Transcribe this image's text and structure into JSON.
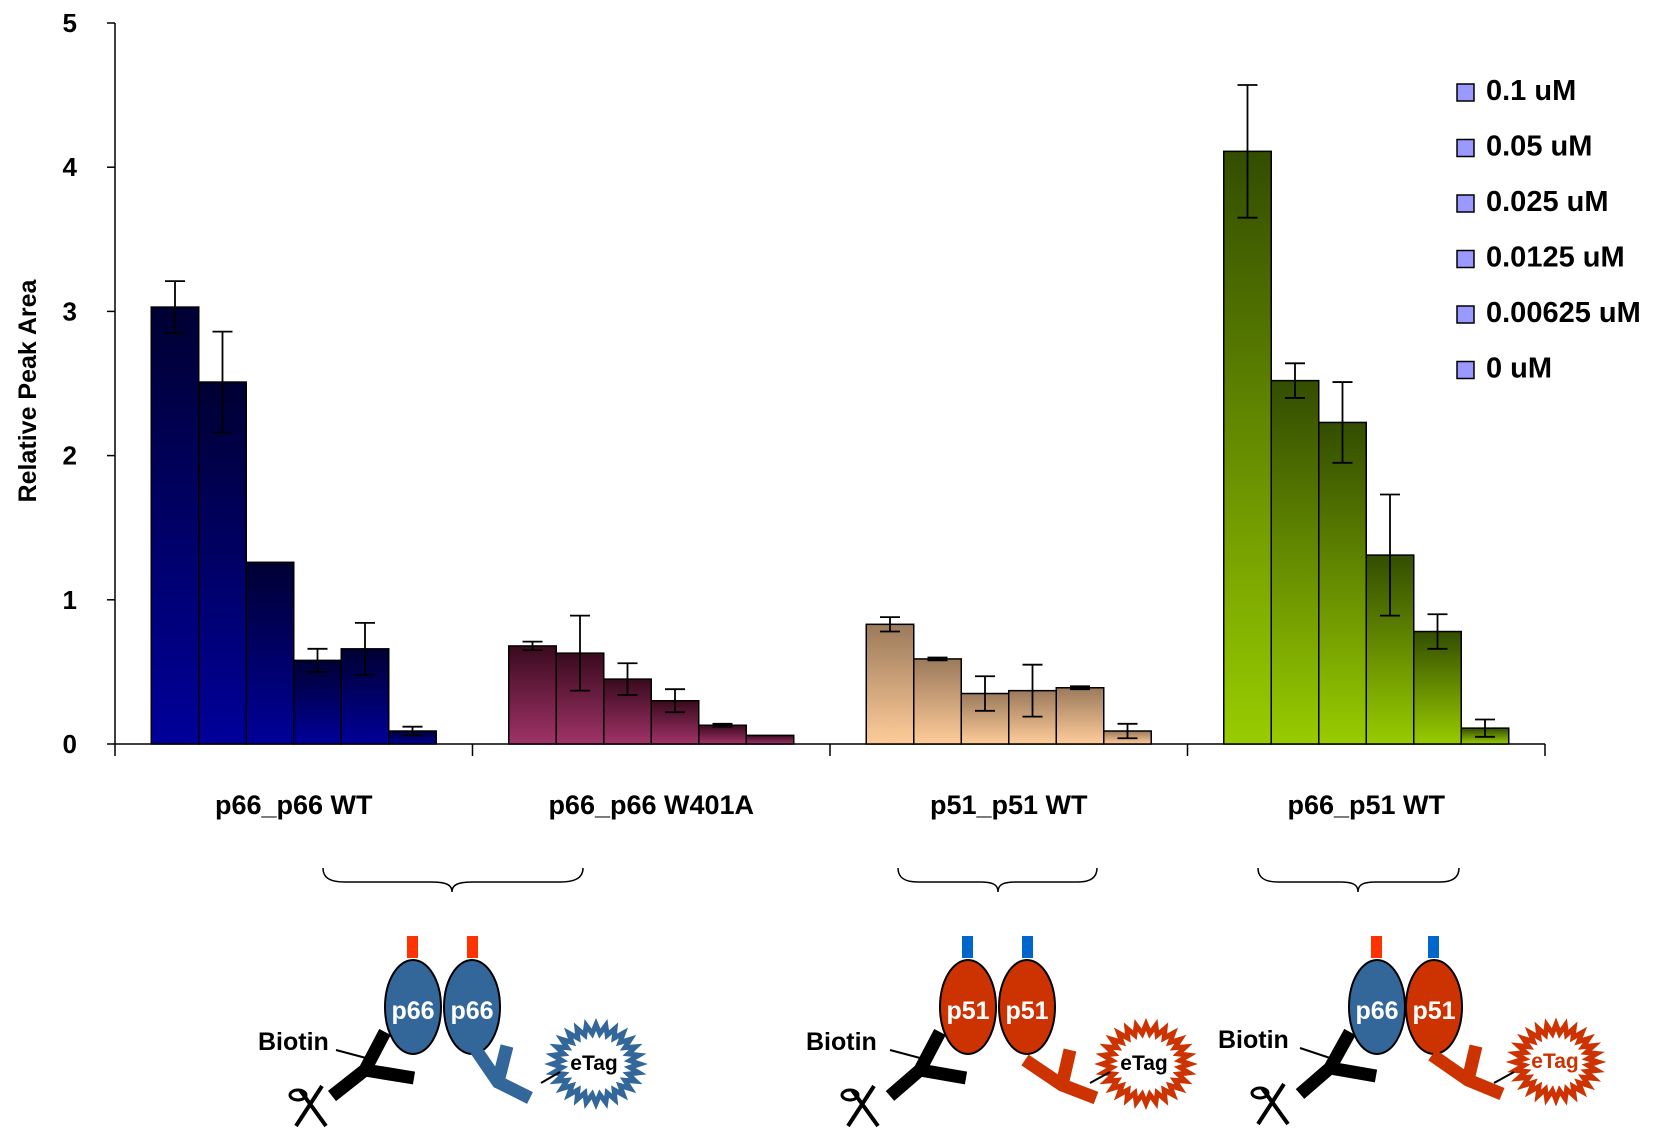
{
  "chart_data": {
    "type": "bar",
    "title": "",
    "ylabel": "Relative Peak Area",
    "xlabel": "",
    "ylim": [
      0,
      5
    ],
    "yticks": [
      "0",
      "1",
      "2",
      "3",
      "4",
      "5"
    ],
    "grid": false,
    "legend_position": "top-right",
    "series_names": [
      "0.1 uM",
      "0.05 uM",
      "0.025 uM",
      "0.0125 uM",
      "0.00625 uM",
      "0 uM"
    ],
    "legend_swatch_color": "#9999ff",
    "groups": [
      {
        "label": "p66_p66 WT",
        "gradient": [
          "#000033",
          "#000099"
        ],
        "values": [
          3.03,
          2.51,
          1.26,
          0.58,
          0.66,
          0.09
        ],
        "errors": [
          0.18,
          0.35,
          0.0,
          0.08,
          0.18,
          0.03
        ]
      },
      {
        "label": "p66_p66 W401A",
        "gradient": [
          "#3a0a1e",
          "#a03368"
        ],
        "values": [
          0.68,
          0.63,
          0.45,
          0.3,
          0.13,
          0.06
        ],
        "errors": [
          0.03,
          0.26,
          0.11,
          0.08,
          0.01,
          0.0
        ]
      },
      {
        "label": "p51_p51 WT",
        "gradient": [
          "#9b7a5c",
          "#ffcc99"
        ],
        "values": [
          0.83,
          0.59,
          0.35,
          0.37,
          0.39,
          0.09
        ],
        "errors": [
          0.05,
          0.01,
          0.12,
          0.18,
          0.01,
          0.05
        ]
      },
      {
        "label": "p66_p51 WT",
        "gradient": [
          "#334d00",
          "#99cc00"
        ],
        "values": [
          4.11,
          2.52,
          2.23,
          1.31,
          0.78,
          0.11
        ],
        "errors": [
          0.46,
          0.12,
          0.28,
          0.42,
          0.12,
          0.06
        ]
      }
    ]
  },
  "diagrams": {
    "left": {
      "biotin_label": "Biotin",
      "subunit_left": "p66",
      "subunit_right": "p66",
      "tag_label": "eTag",
      "subunit_left_color": "#336699",
      "subunit_right_color": "#336699",
      "tag_left_color": "#ff3300",
      "tag_right_color": "#ff3300",
      "antibody_color": "#336699",
      "etag_color": "#336699"
    },
    "middle": {
      "biotin_label": "Biotin",
      "subunit_left": "p51",
      "subunit_right": "p51",
      "tag_label": "eTag",
      "subunit_left_color": "#cc3300",
      "subunit_right_color": "#cc3300",
      "tag_left_color": "#0066cc",
      "tag_right_color": "#0066cc",
      "antibody_color": "#cc3300",
      "etag_color": "#cc3300"
    },
    "right": {
      "biotin_label": "Biotin",
      "subunit_left": "p66",
      "subunit_right": "p51",
      "tag_label": "eTag",
      "subunit_left_color": "#336699",
      "subunit_right_color": "#cc3300",
      "tag_left_color": "#ff3300",
      "tag_right_color": "#0066cc",
      "antibody_color": "#cc3300",
      "etag_color": "#cc3300"
    }
  }
}
